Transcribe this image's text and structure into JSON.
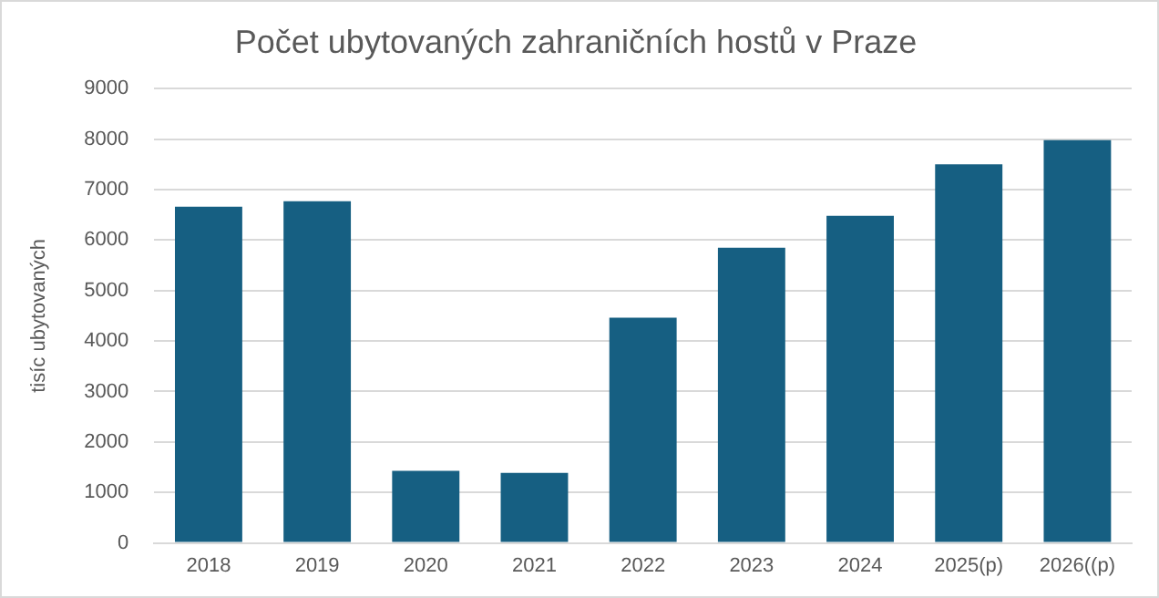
{
  "chart_data": {
    "type": "bar",
    "title": "Počet ubytovaných zahraničních hostů v Praze",
    "ylabel": "tisíc ubytovaných",
    "categories": [
      "2018",
      "2019",
      "2020",
      "2021",
      "2022",
      "2023",
      "2024",
      "2025(p)",
      "2026((p)"
    ],
    "values": [
      6660,
      6770,
      1430,
      1390,
      4460,
      5850,
      6480,
      7500,
      7980
    ],
    "color": "#165f82",
    "ylim": [
      0,
      9000
    ],
    "yticks": [
      0,
      1000,
      2000,
      3000,
      4000,
      5000,
      6000,
      7000,
      8000,
      9000
    ],
    "grid": "y",
    "legend": false
  }
}
